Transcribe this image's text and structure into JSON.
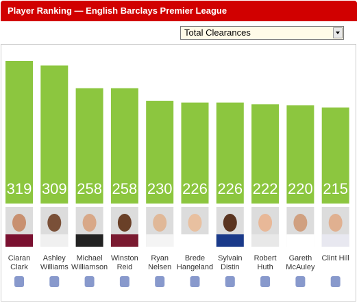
{
  "chart_data": {
    "type": "bar",
    "title": "Player Ranking — English Barclays Premier League",
    "dropdown": "Total Clearances",
    "categories": [
      "Ciaran\nClark",
      "Ashley\nWilliams",
      "Michael\nWilliamson",
      "Winston\nReid",
      "Ryan\nNelsen",
      "Brede\nHangeland",
      "Sylvain\nDistin",
      "Robert\nHuth",
      "Gareth\nMcAuley",
      "Clint Hill"
    ],
    "values": [
      319,
      309,
      258,
      258,
      230,
      226,
      226,
      222,
      220,
      215
    ],
    "color": "#8cc63f"
  }
}
